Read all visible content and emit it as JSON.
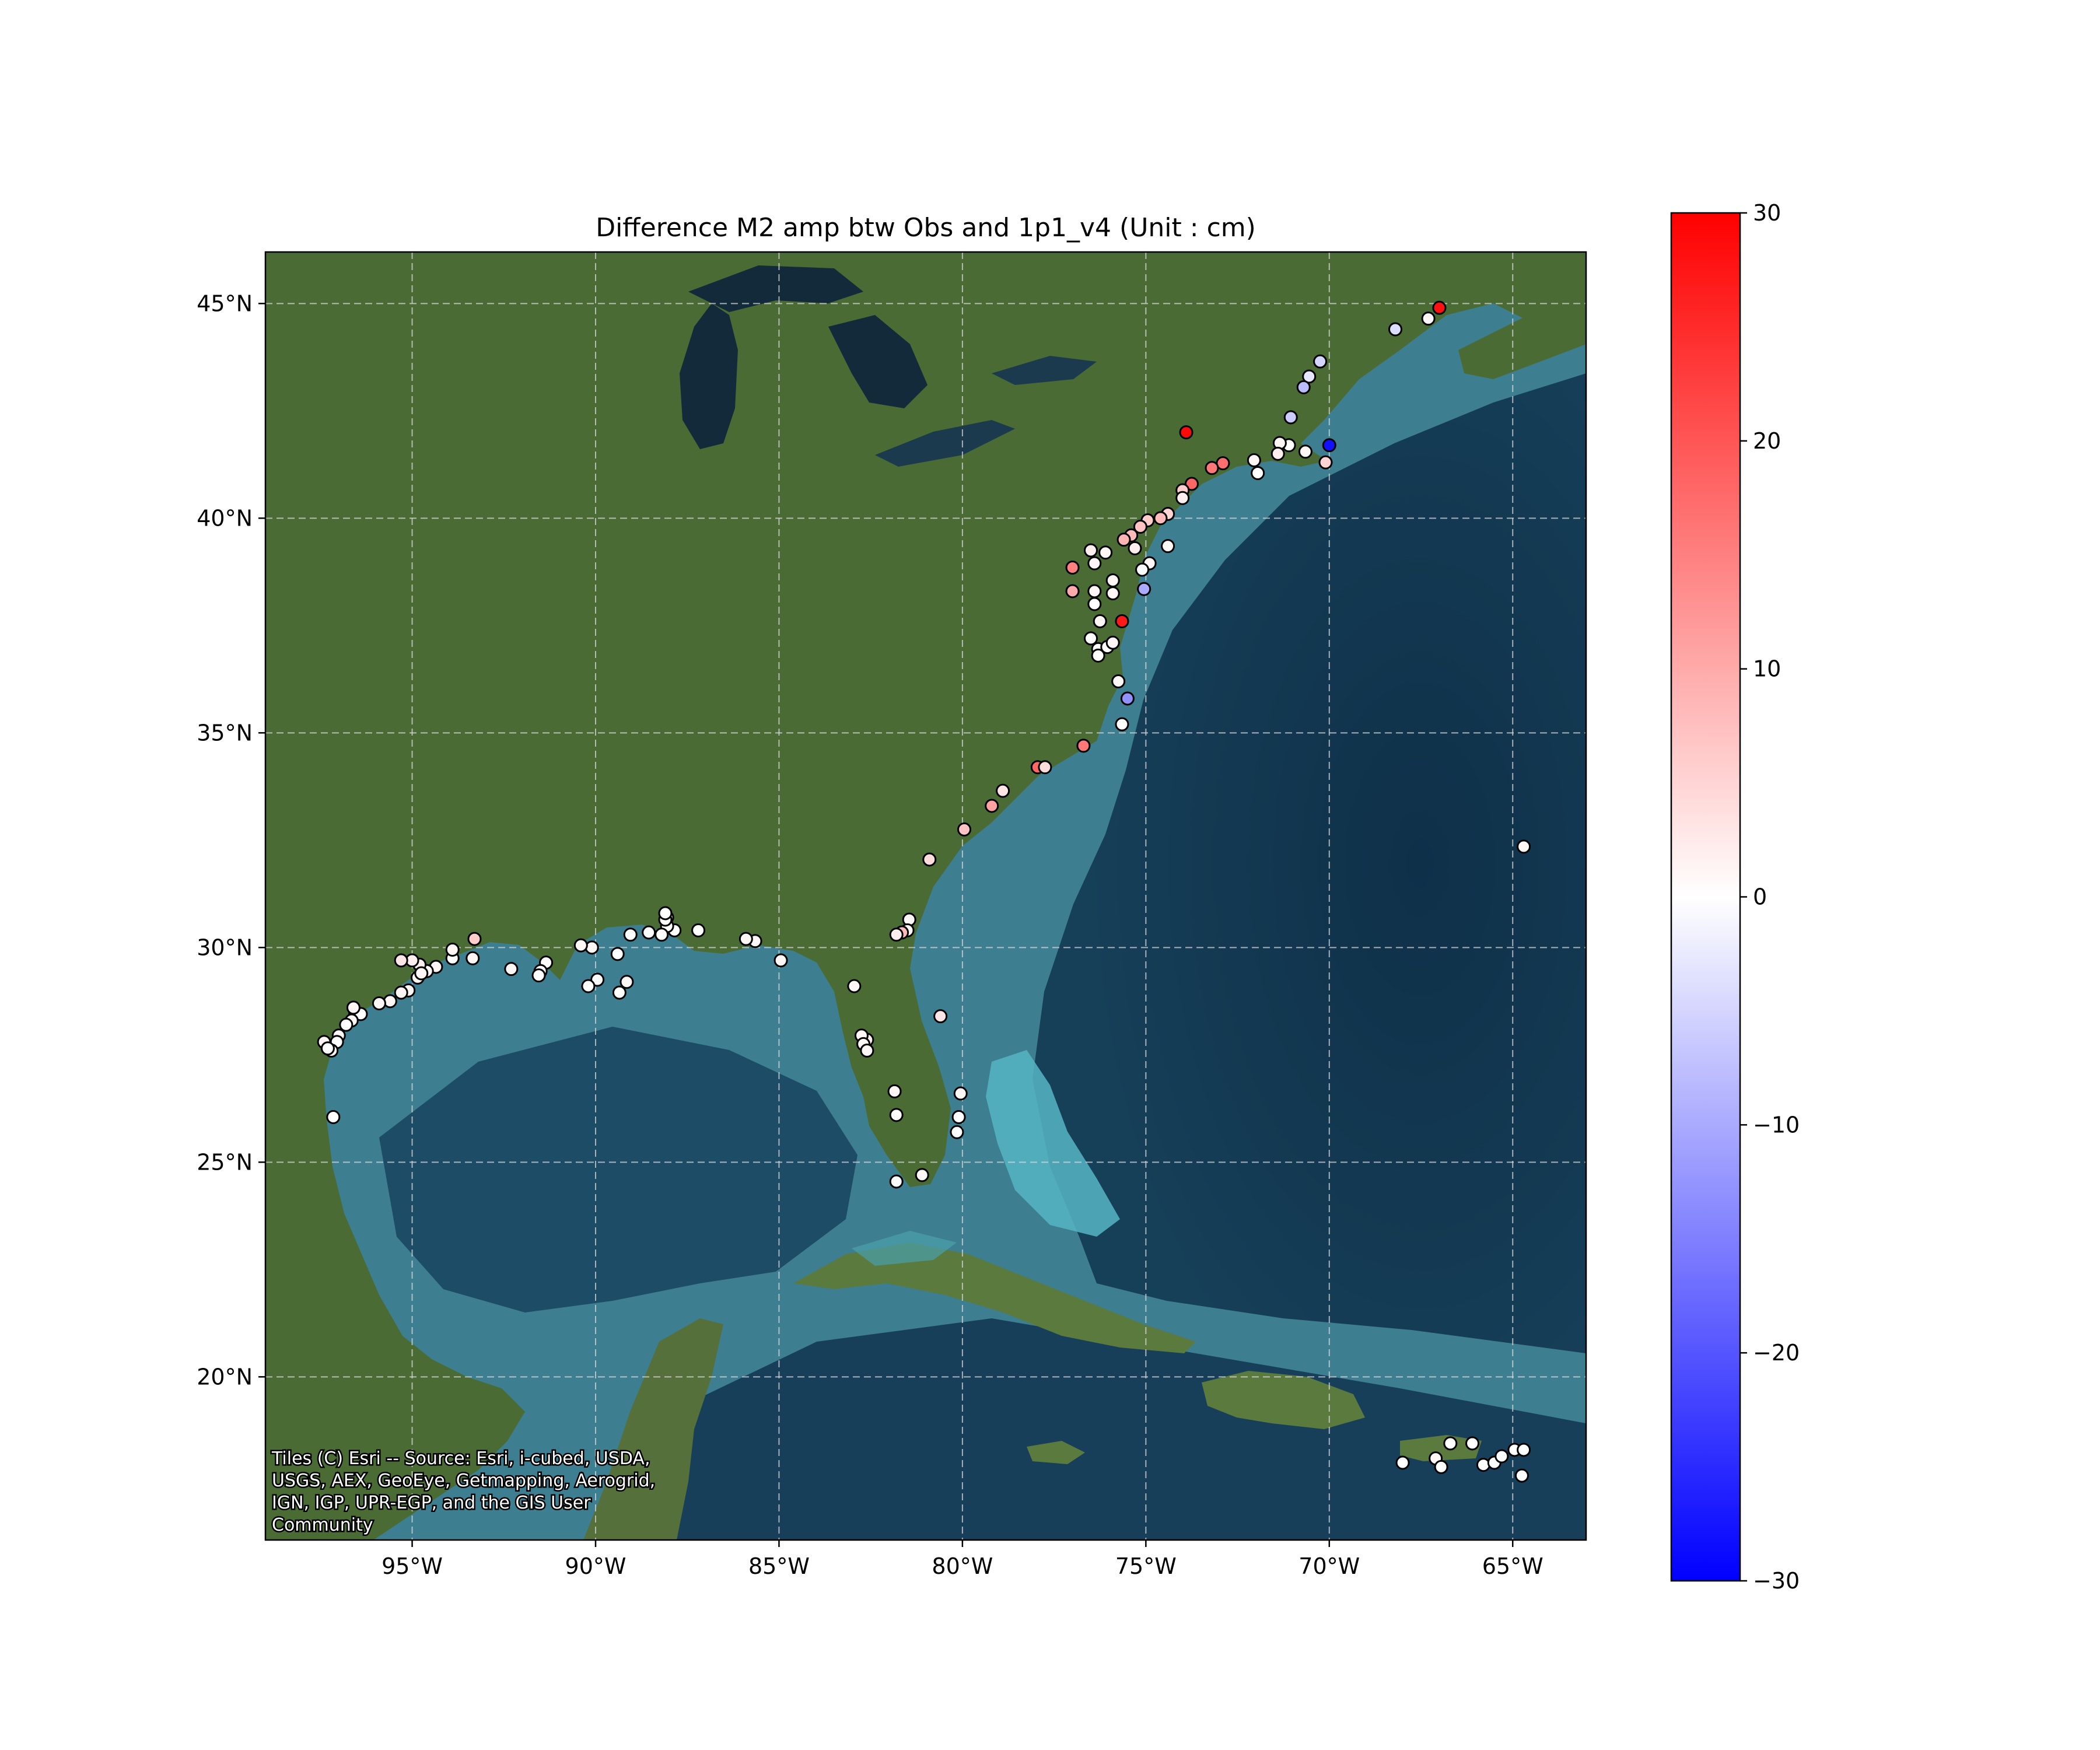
{
  "title": "Difference M2 amp btw Obs and 1p1_v4 (Unit : cm)",
  "map": {
    "extent": {
      "lon": [
        -99,
        -63
      ],
      "lat": [
        16.2,
        46.2
      ]
    },
    "lon_ticks": [
      {
        "value": -95,
        "label": "95°W"
      },
      {
        "value": -90,
        "label": "90°W"
      },
      {
        "value": -85,
        "label": "85°W"
      },
      {
        "value": -80,
        "label": "80°W"
      },
      {
        "value": -75,
        "label": "75°W"
      },
      {
        "value": -70,
        "label": "70°W"
      },
      {
        "value": -65,
        "label": "65°W"
      }
    ],
    "lat_ticks": [
      {
        "value": 20,
        "label": "20°N"
      },
      {
        "value": 25,
        "label": "25°N"
      },
      {
        "value": 30,
        "label": "30°N"
      },
      {
        "value": 35,
        "label": "35°N"
      },
      {
        "value": 40,
        "label": "40°N"
      },
      {
        "value": 45,
        "label": "45°N"
      }
    ],
    "gridlines": true,
    "basemap": "satellite imagery",
    "colors": {
      "ocean_shelf": "#3d7f90",
      "ocean_deep": "#123a52",
      "land": "#4a6b34"
    }
  },
  "attribution": {
    "lines": [
      "Tiles (C) Esri -- Source: Esri, i-cubed, USDA,",
      "USGS, AEX, GeoEye, Getmapping, Aerogrid,",
      "IGN, IGP, UPR-EGP, and the GIS User",
      "Community"
    ]
  },
  "colorbar": {
    "cmap": "bwr",
    "min": -30,
    "max": 30,
    "ticks": [
      {
        "value": 30,
        "label": "30"
      },
      {
        "value": 20,
        "label": "20"
      },
      {
        "value": 10,
        "label": "10"
      },
      {
        "value": 0,
        "label": "0"
      },
      {
        "value": -10,
        "label": "−10"
      },
      {
        "value": -20,
        "label": "−20"
      },
      {
        "value": -30,
        "label": "−30"
      }
    ]
  },
  "stations": [
    {
      "lon": -67.0,
      "lat": 44.9,
      "v": 28
    },
    {
      "lon": -67.3,
      "lat": 44.65,
      "v": 1
    },
    {
      "lon": -68.2,
      "lat": 44.4,
      "v": -4
    },
    {
      "lon": -70.25,
      "lat": 43.65,
      "v": -5
    },
    {
      "lon": -70.55,
      "lat": 43.3,
      "v": -3
    },
    {
      "lon": -70.7,
      "lat": 43.05,
      "v": -8
    },
    {
      "lon": -71.05,
      "lat": 42.35,
      "v": -6
    },
    {
      "lon": -70.0,
      "lat": 41.7,
      "v": -28
    },
    {
      "lon": -70.1,
      "lat": 41.3,
      "v": 5
    },
    {
      "lon": -70.65,
      "lat": 41.55,
      "v": 1
    },
    {
      "lon": -71.1,
      "lat": 41.7,
      "v": 0
    },
    {
      "lon": -71.35,
      "lat": 41.75,
      "v": 1
    },
    {
      "lon": -71.4,
      "lat": 41.5,
      "v": 2
    },
    {
      "lon": -72.05,
      "lat": 41.35,
      "v": 1
    },
    {
      "lon": -71.95,
      "lat": 41.05,
      "v": 0
    },
    {
      "lon": -72.9,
      "lat": 41.28,
      "v": 17
    },
    {
      "lon": -73.2,
      "lat": 41.17,
      "v": 16
    },
    {
      "lon": -73.75,
      "lat": 40.8,
      "v": 18
    },
    {
      "lon": -74.0,
      "lat": 40.65,
      "v": 6
    },
    {
      "lon": -74.0,
      "lat": 40.47,
      "v": 2
    },
    {
      "lon": -73.9,
      "lat": 42.0,
      "v": 29
    },
    {
      "lon": -74.4,
      "lat": 40.1,
      "v": 5
    },
    {
      "lon": -74.6,
      "lat": 40.0,
      "v": 8
    },
    {
      "lon": -74.95,
      "lat": 39.95,
      "v": 6
    },
    {
      "lon": -75.15,
      "lat": 39.8,
      "v": 7
    },
    {
      "lon": -75.4,
      "lat": 39.6,
      "v": 8
    },
    {
      "lon": -75.6,
      "lat": 39.5,
      "v": 9
    },
    {
      "lon": -74.4,
      "lat": 39.35,
      "v": 1
    },
    {
      "lon": -75.3,
      "lat": 39.3,
      "v": 2
    },
    {
      "lon": -74.9,
      "lat": 38.95,
      "v": 1
    },
    {
      "lon": -75.1,
      "lat": 38.8,
      "v": 0
    },
    {
      "lon": -75.05,
      "lat": 38.35,
      "v": -10
    },
    {
      "lon": -76.5,
      "lat": 39.25,
      "v": 2
    },
    {
      "lon": -76.1,
      "lat": 39.2,
      "v": 1
    },
    {
      "lon": -76.4,
      "lat": 38.95,
      "v": 1
    },
    {
      "lon": -77.0,
      "lat": 38.85,
      "v": 15
    },
    {
      "lon": -77.0,
      "lat": 38.3,
      "v": 10
    },
    {
      "lon": -76.4,
      "lat": 38.3,
      "v": 1
    },
    {
      "lon": -76.4,
      "lat": 38.0,
      "v": 0
    },
    {
      "lon": -75.9,
      "lat": 38.25,
      "v": 1
    },
    {
      "lon": -75.9,
      "lat": 38.55,
      "v": 1
    },
    {
      "lon": -76.25,
      "lat": 37.6,
      "v": 1
    },
    {
      "lon": -75.65,
      "lat": 37.6,
      "v": 27
    },
    {
      "lon": -76.5,
      "lat": 37.2,
      "v": 0
    },
    {
      "lon": -76.3,
      "lat": 36.95,
      "v": 0
    },
    {
      "lon": -76.3,
      "lat": 36.8,
      "v": 0
    },
    {
      "lon": -76.05,
      "lat": 37.0,
      "v": 0
    },
    {
      "lon": -75.9,
      "lat": 37.1,
      "v": 1
    },
    {
      "lon": -75.75,
      "lat": 36.2,
      "v": 1
    },
    {
      "lon": -75.5,
      "lat": 35.8,
      "v": -13
    },
    {
      "lon": -75.65,
      "lat": 35.2,
      "v": 0
    },
    {
      "lon": -76.7,
      "lat": 34.7,
      "v": 16
    },
    {
      "lon": -77.95,
      "lat": 34.2,
      "v": 18
    },
    {
      "lon": -77.75,
      "lat": 34.2,
      "v": 4
    },
    {
      "lon": -78.9,
      "lat": 33.65,
      "v": 3
    },
    {
      "lon": -79.2,
      "lat": 33.3,
      "v": 11
    },
    {
      "lon": -79.95,
      "lat": 32.75,
      "v": 7
    },
    {
      "lon": -80.9,
      "lat": 32.05,
      "v": 4
    },
    {
      "lon": -81.45,
      "lat": 30.65,
      "v": 1
    },
    {
      "lon": -81.5,
      "lat": 30.4,
      "v": 1
    },
    {
      "lon": -81.65,
      "lat": 30.35,
      "v": 8
    },
    {
      "lon": -81.8,
      "lat": 30.3,
      "v": 2
    },
    {
      "lon": -80.6,
      "lat": 28.4,
      "v": 3
    },
    {
      "lon": -80.05,
      "lat": 26.6,
      "v": 1
    },
    {
      "lon": -80.1,
      "lat": 26.05,
      "v": 0
    },
    {
      "lon": -80.15,
      "lat": 25.7,
      "v": 0
    },
    {
      "lon": -81.1,
      "lat": 24.7,
      "v": 1
    },
    {
      "lon": -81.8,
      "lat": 24.55,
      "v": 0
    },
    {
      "lon": -81.85,
      "lat": 26.65,
      "v": 1
    },
    {
      "lon": -81.8,
      "lat": 26.1,
      "v": 0
    },
    {
      "lon": -82.6,
      "lat": 27.85,
      "v": 2
    },
    {
      "lon": -82.75,
      "lat": 27.95,
      "v": 1
    },
    {
      "lon": -82.7,
      "lat": 27.75,
      "v": 1
    },
    {
      "lon": -82.6,
      "lat": 27.6,
      "v": 1
    },
    {
      "lon": -82.95,
      "lat": 29.1,
      "v": 1
    },
    {
      "lon": -84.95,
      "lat": 29.7,
      "v": 1
    },
    {
      "lon": -85.65,
      "lat": 30.15,
      "v": 1
    },
    {
      "lon": -85.9,
      "lat": 30.2,
      "v": 1
    },
    {
      "lon": -87.2,
      "lat": 30.4,
      "v": 0
    },
    {
      "lon": -87.85,
      "lat": 30.4,
      "v": 0
    },
    {
      "lon": -88.05,
      "lat": 30.5,
      "v": 0
    },
    {
      "lon": -88.05,
      "lat": 30.7,
      "v": 0
    },
    {
      "lon": -88.1,
      "lat": 30.65,
      "v": 0
    },
    {
      "lon": -88.2,
      "lat": 30.3,
      "v": 0
    },
    {
      "lon": -88.1,
      "lat": 30.8,
      "v": 0
    },
    {
      "lon": -88.55,
      "lat": 30.35,
      "v": 0
    },
    {
      "lon": -89.05,
      "lat": 30.3,
      "v": 0
    },
    {
      "lon": -89.4,
      "lat": 29.85,
      "v": 0
    },
    {
      "lon": -89.15,
      "lat": 29.2,
      "v": 1
    },
    {
      "lon": -89.35,
      "lat": 28.95,
      "v": 0
    },
    {
      "lon": -89.95,
      "lat": 29.25,
      "v": 0
    },
    {
      "lon": -90.2,
      "lat": 29.1,
      "v": 0
    },
    {
      "lon": -90.1,
      "lat": 30.0,
      "v": 1
    },
    {
      "lon": -90.4,
      "lat": 30.05,
      "v": 1
    },
    {
      "lon": -91.35,
      "lat": 29.65,
      "v": 0
    },
    {
      "lon": -91.5,
      "lat": 29.45,
      "v": 0
    },
    {
      "lon": -91.55,
      "lat": 29.35,
      "v": 0
    },
    {
      "lon": -92.3,
      "lat": 29.5,
      "v": 1
    },
    {
      "lon": -93.3,
      "lat": 30.2,
      "v": 6
    },
    {
      "lon": -93.35,
      "lat": 29.75,
      "v": 1
    },
    {
      "lon": -93.9,
      "lat": 29.75,
      "v": 0
    },
    {
      "lon": -93.9,
      "lat": 29.95,
      "v": 1
    },
    {
      "lon": -94.35,
      "lat": 29.55,
      "v": 1
    },
    {
      "lon": -94.6,
      "lat": 29.45,
      "v": 1
    },
    {
      "lon": -94.85,
      "lat": 29.3,
      "v": 1
    },
    {
      "lon": -94.8,
      "lat": 29.6,
      "v": 2
    },
    {
      "lon": -94.75,
      "lat": 29.4,
      "v": 1
    },
    {
      "lon": -95.0,
      "lat": 29.7,
      "v": 2
    },
    {
      "lon": -95.3,
      "lat": 29.7,
      "v": 3
    },
    {
      "lon": -95.1,
      "lat": 29.0,
      "v": 1
    },
    {
      "lon": -95.3,
      "lat": 28.95,
      "v": 1
    },
    {
      "lon": -95.6,
      "lat": 28.75,
      "v": 1
    },
    {
      "lon": -95.9,
      "lat": 28.7,
      "v": 1
    },
    {
      "lon": -96.55,
      "lat": 28.45,
      "v": 1
    },
    {
      "lon": -96.4,
      "lat": 28.45,
      "v": 0
    },
    {
      "lon": -96.65,
      "lat": 28.3,
      "v": 1
    },
    {
      "lon": -96.6,
      "lat": 28.6,
      "v": 1
    },
    {
      "lon": -96.8,
      "lat": 28.2,
      "v": 0
    },
    {
      "lon": -97.0,
      "lat": 27.95,
      "v": 1
    },
    {
      "lon": -97.05,
      "lat": 27.8,
      "v": 0
    },
    {
      "lon": -97.2,
      "lat": 27.6,
      "v": 1
    },
    {
      "lon": -97.4,
      "lat": 27.8,
      "v": 1
    },
    {
      "lon": -97.3,
      "lat": 27.65,
      "v": 0
    },
    {
      "lon": -97.15,
      "lat": 26.05,
      "v": 0
    },
    {
      "lon": -64.7,
      "lat": 32.35,
      "v": 1
    },
    {
      "lon": -68.0,
      "lat": 18.0,
      "v": 0
    },
    {
      "lon": -67.1,
      "lat": 18.1,
      "v": 1
    },
    {
      "lon": -66.95,
      "lat": 17.9,
      "v": 0
    },
    {
      "lon": -66.7,
      "lat": 18.45,
      "v": 0
    },
    {
      "lon": -66.1,
      "lat": 18.45,
      "v": 0
    },
    {
      "lon": -65.8,
      "lat": 17.95,
      "v": 0
    },
    {
      "lon": -65.5,
      "lat": 18.0,
      "v": 0
    },
    {
      "lon": -65.3,
      "lat": 18.15,
      "v": 0
    },
    {
      "lon": -64.95,
      "lat": 18.3,
      "v": 0
    },
    {
      "lon": -64.7,
      "lat": 18.3,
      "v": 0
    },
    {
      "lon": -64.75,
      "lat": 17.7,
      "v": 0
    }
  ]
}
